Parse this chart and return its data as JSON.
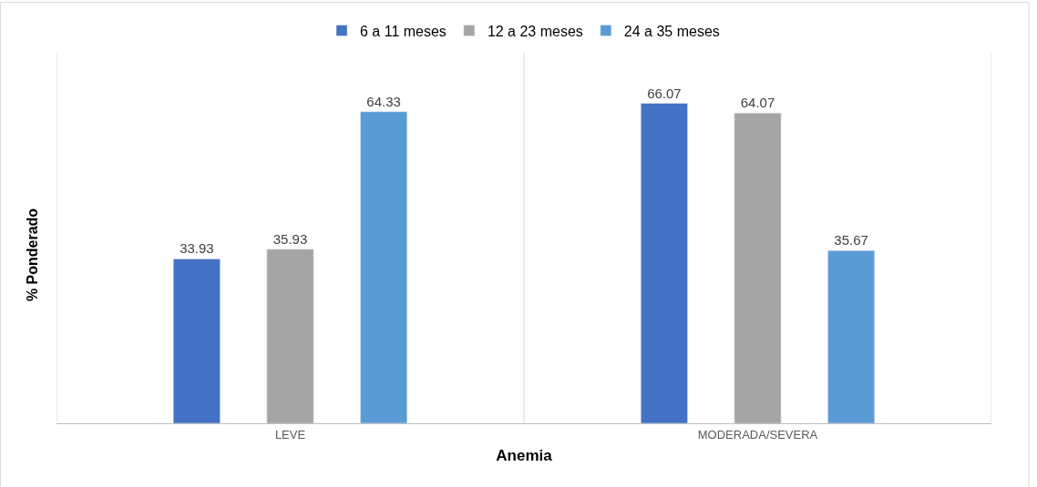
{
  "chart_data": {
    "type": "bar",
    "xlabel": "Anemia",
    "ylabel": "% Ponderado",
    "categories": [
      "LEVE",
      "MODERADA/SEVERA"
    ],
    "series": [
      {
        "name": "6 a 11 meses",
        "color": "#4472c4",
        "values": [
          33.93,
          66.07
        ]
      },
      {
        "name": "12 a 23 meses",
        "color": "#a5a5a5",
        "values": [
          35.93,
          64.07
        ]
      },
      {
        "name": "24 a 35 meses",
        "color": "#5b9bd5",
        "values": [
          64.33,
          35.67
        ]
      }
    ],
    "data_labels": true,
    "grid": "x",
    "legend": "top",
    "tick_labels": "x"
  }
}
